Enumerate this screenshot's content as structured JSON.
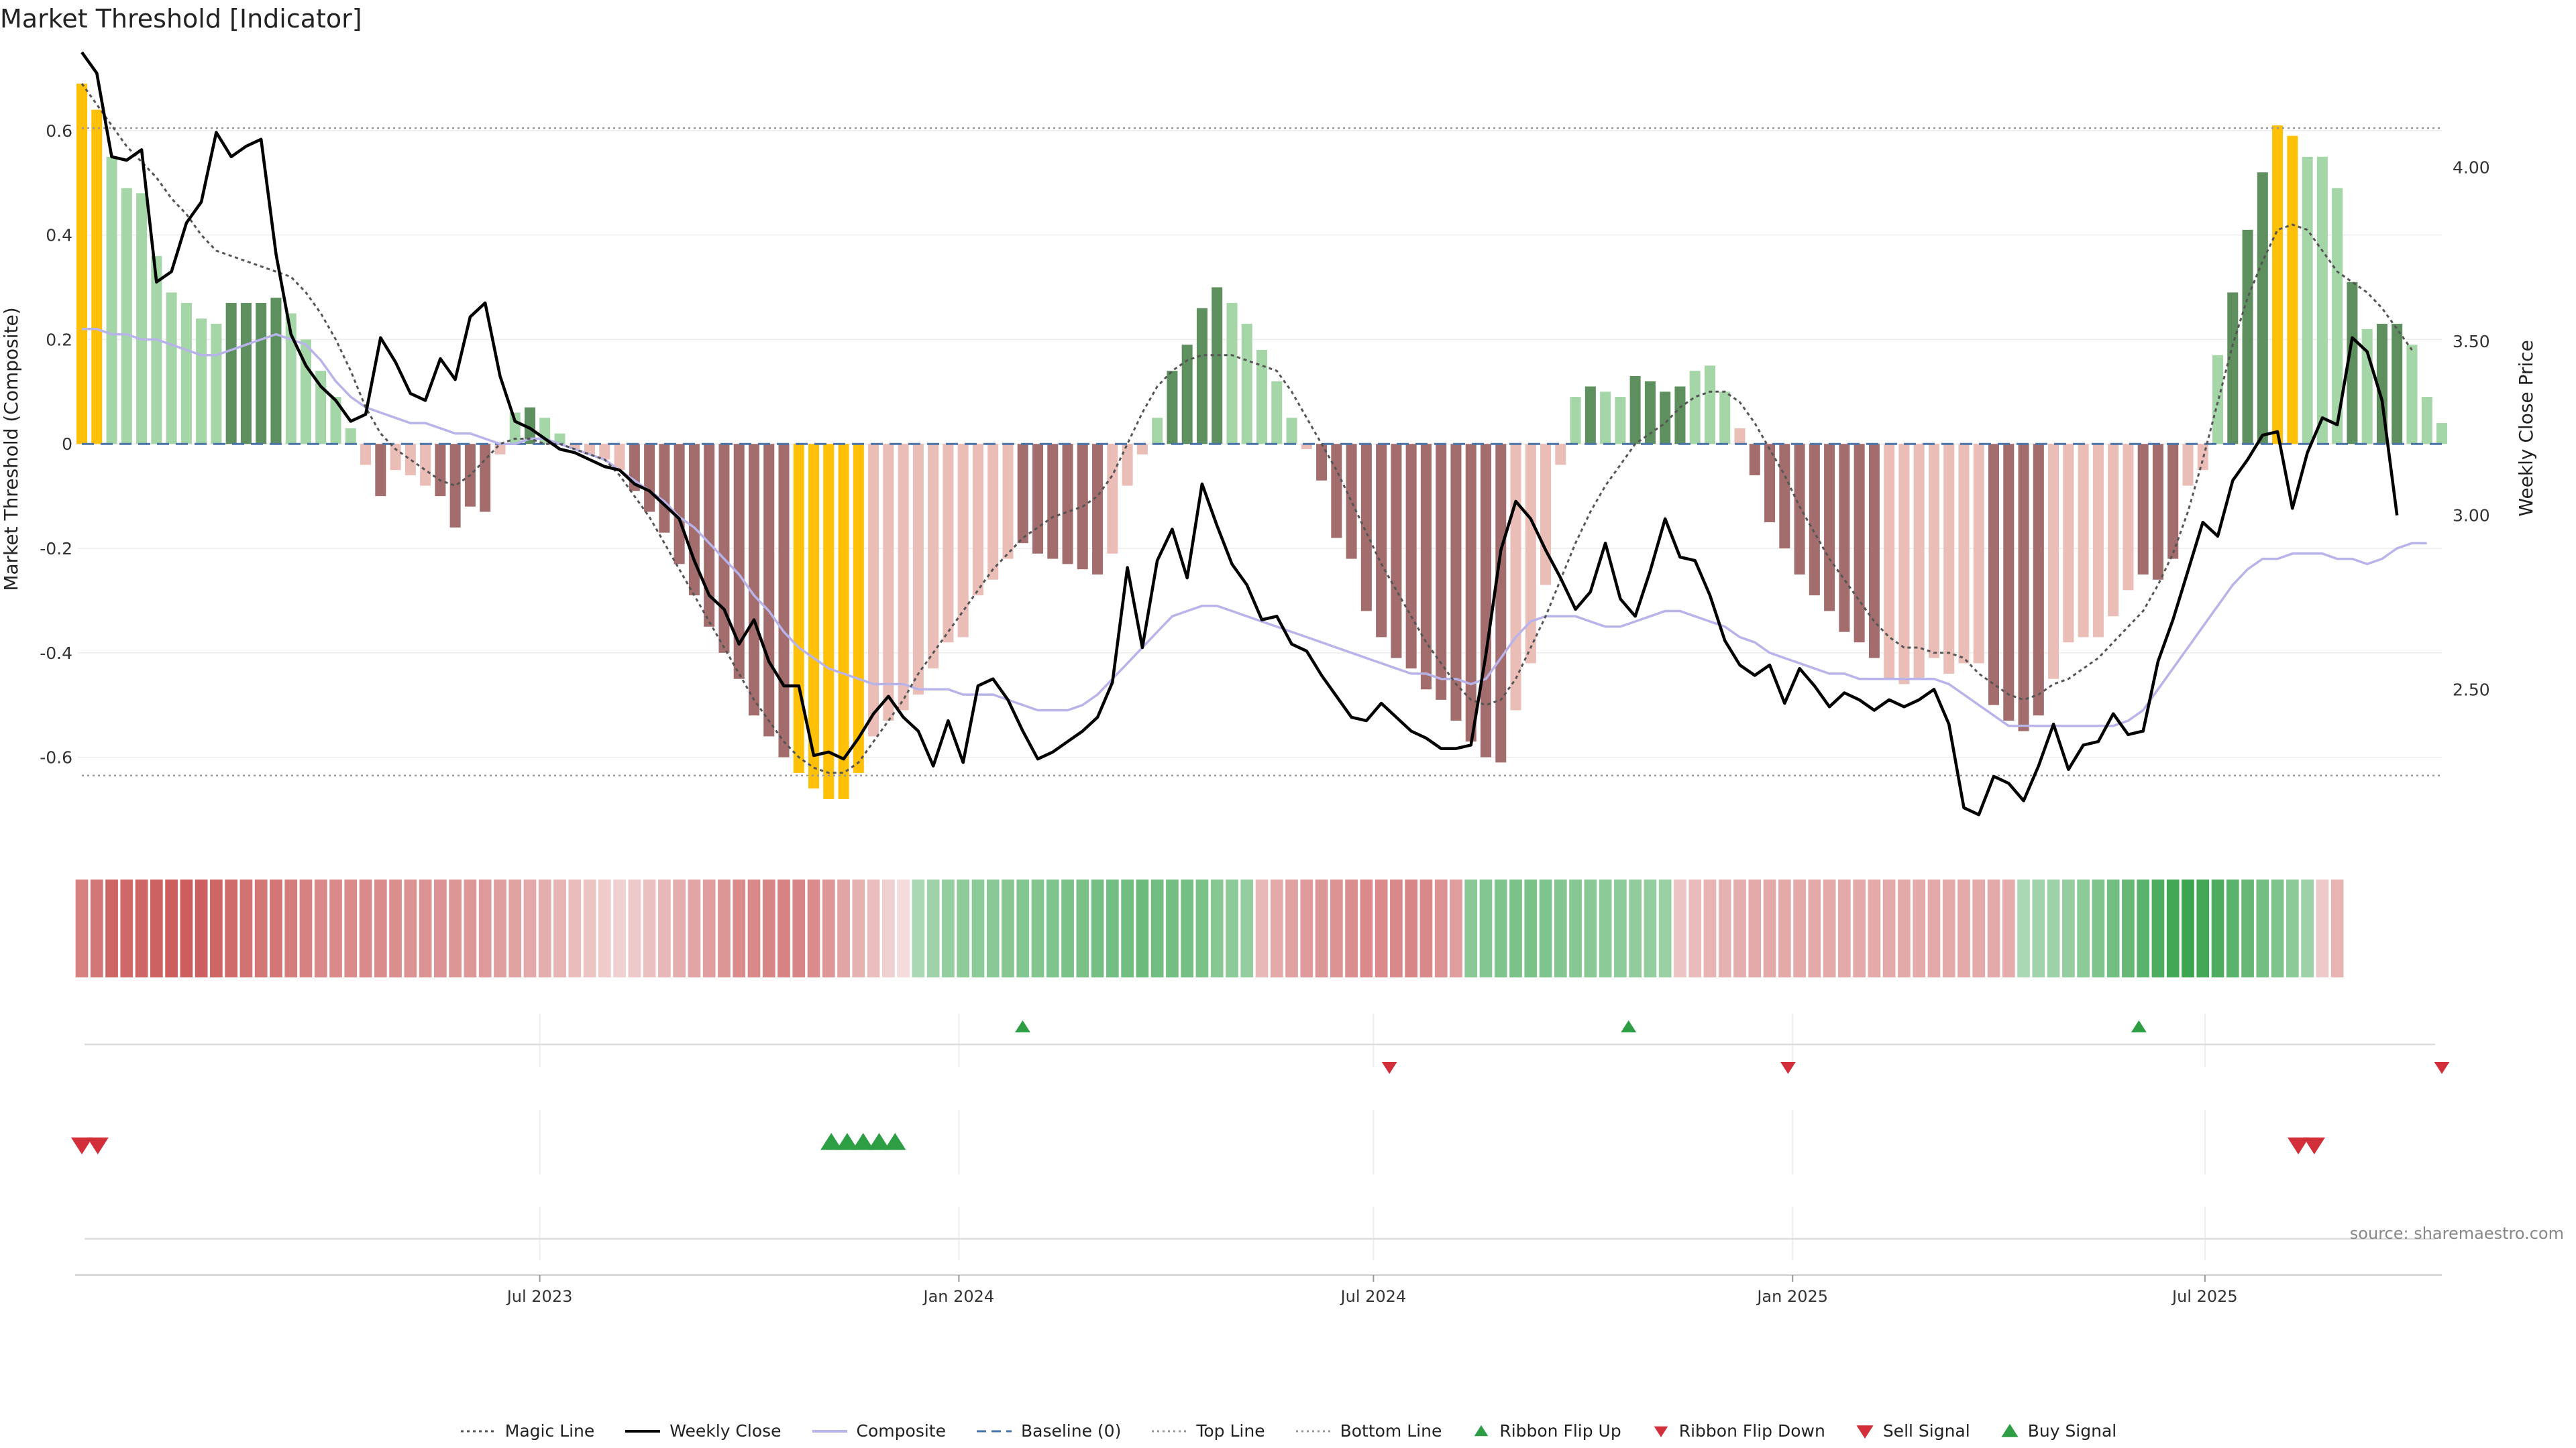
{
  "title": "Market Threshold [Indicator]",
  "source": "source: sharemaestro.com",
  "chart_data": {
    "type": "bar",
    "x_range": [
      "2022-12-12",
      "2025-10-13"
    ],
    "x_ticks": [
      "Jul 2023",
      "Jan 2024",
      "Jul 2024",
      "Jan 2025",
      "Jul 2025"
    ],
    "ylabel_left": "Market Threshold (Composite)",
    "ylabel_right": "Weekly Close Price",
    "ylim_left": [
      -0.77,
      0.75
    ],
    "yticks_left": [
      "0.6",
      "0.4",
      "0.2",
      "0",
      "-0.2",
      "-0.4",
      "-0.6"
    ],
    "ylim_right": [
      2.05,
      4.33
    ],
    "yticks_right": [
      "4.00",
      "3.50",
      "3.00",
      "2.50"
    ],
    "top_line": 0.605,
    "bottom_line": -0.635,
    "grid": true,
    "legend_placement": "bottom",
    "colors": {
      "extreme": "#FFC107",
      "pos_strong": "#5E8F5E",
      "pos_weak": "#A5D6A7",
      "neg_strong": "#A46D6D",
      "neg_weak": "#EABDB7",
      "weekly_close": "#000000",
      "composite": "#B8B3E9",
      "magic_line": "#555555",
      "baseline": "#4A74A8",
      "buy": "#2E9E44",
      "sell": "#D32F3A"
    },
    "bar_values": [
      0.69,
      0.64,
      0.55,
      0.49,
      0.48,
      0.36,
      0.29,
      0.27,
      0.24,
      0.23,
      0.27,
      0.27,
      0.27,
      0.28,
      0.25,
      0.2,
      0.14,
      0.09,
      0.03,
      -0.04,
      -0.1,
      -0.05,
      -0.06,
      -0.08,
      -0.1,
      -0.16,
      -0.12,
      -0.13,
      -0.02,
      0.06,
      0.07,
      0.05,
      0.02,
      -0.01,
      -0.02,
      -0.03,
      -0.05,
      -0.09,
      -0.13,
      -0.17,
      -0.23,
      -0.29,
      -0.35,
      -0.4,
      -0.45,
      -0.52,
      -0.56,
      -0.6,
      -0.63,
      -0.66,
      -0.68,
      -0.68,
      -0.63,
      -0.56,
      -0.53,
      -0.51,
      -0.48,
      -0.43,
      -0.38,
      -0.37,
      -0.29,
      -0.26,
      -0.22,
      -0.19,
      -0.21,
      -0.22,
      -0.23,
      -0.24,
      -0.25,
      -0.21,
      -0.08,
      -0.02,
      0.05,
      0.14,
      0.19,
      0.26,
      0.3,
      0.27,
      0.23,
      0.18,
      0.12,
      0.05,
      -0.01,
      -0.07,
      -0.18,
      -0.22,
      -0.32,
      -0.37,
      -0.41,
      -0.43,
      -0.47,
      -0.49,
      -0.53,
      -0.57,
      -0.6,
      -0.61,
      -0.51,
      -0.42,
      -0.27,
      -0.04,
      0.09,
      0.11,
      0.1,
      0.09,
      0.13,
      0.12,
      0.1,
      0.11,
      0.14,
      0.15,
      0.1,
      0.03,
      -0.06,
      -0.15,
      -0.2,
      -0.25,
      -0.29,
      -0.32,
      -0.36,
      -0.38,
      -0.41,
      -0.45,
      -0.46,
      -0.45,
      -0.41,
      -0.44,
      -0.42,
      -0.42,
      -0.5,
      -0.53,
      -0.55,
      -0.52,
      -0.45,
      -0.38,
      -0.37,
      -0.37,
      -0.33,
      -0.28,
      -0.25,
      -0.26,
      -0.22,
      -0.08,
      -0.05,
      0.17,
      0.29,
      0.41,
      0.52,
      0.61,
      0.59,
      0.55,
      0.55,
      0.49,
      0.31,
      0.22,
      0.23,
      0.23,
      0.19,
      0.09,
      0.04
    ],
    "bar_class": [
      "ex",
      "ex",
      "pw",
      "pw",
      "pw",
      "pw",
      "pw",
      "pw",
      "pw",
      "pw",
      "ps",
      "ps",
      "ps",
      "ps",
      "pw",
      "pw",
      "pw",
      "pw",
      "pw",
      "nw",
      "ns",
      "nw",
      "nw",
      "nw",
      "ns",
      "ns",
      "ns",
      "ns",
      "nw",
      "pw",
      "ps",
      "pw",
      "pw",
      "nw",
      "nw",
      "nw",
      "nw",
      "ns",
      "ns",
      "ns",
      "ns",
      "ns",
      "ns",
      "ns",
      "ns",
      "ns",
      "ns",
      "ns",
      "ex",
      "ex",
      "ex",
      "ex",
      "ex",
      "nw",
      "nw",
      "nw",
      "nw",
      "nw",
      "nw",
      "nw",
      "nw",
      "nw",
      "nw",
      "ns",
      "ns",
      "ns",
      "ns",
      "ns",
      "ns",
      "nw",
      "nw",
      "nw",
      "pw",
      "ps",
      "ps",
      "ps",
      "ps",
      "pw",
      "pw",
      "pw",
      "pw",
      "pw",
      "nw",
      "ns",
      "ns",
      "ns",
      "ns",
      "ns",
      "ns",
      "ns",
      "ns",
      "ns",
      "ns",
      "ns",
      "ns",
      "ns",
      "nw",
      "nw",
      "nw",
      "nw",
      "pw",
      "ps",
      "pw",
      "pw",
      "ps",
      "ps",
      "ps",
      "ps",
      "pw",
      "pw",
      "pw",
      "nw",
      "ns",
      "ns",
      "ns",
      "ns",
      "ns",
      "ns",
      "ns",
      "ns",
      "ns",
      "nw",
      "nw",
      "nw",
      "nw",
      "nw",
      "nw",
      "nw",
      "ns",
      "ns",
      "ns",
      "ns",
      "nw",
      "nw",
      "nw",
      "nw",
      "nw",
      "nw",
      "ns",
      "ns",
      "ns",
      "nw",
      "nw",
      "pw",
      "ps",
      "ps",
      "ps",
      "ex",
      "ex",
      "pw",
      "pw",
      "pw",
      "ps",
      "pw",
      "ps",
      "ps",
      "pw",
      "pw",
      "pw"
    ],
    "series": [
      {
        "name": "Weekly Close",
        "values": [
          4.33,
          4.27,
          4.03,
          4.02,
          4.05,
          3.67,
          3.7,
          3.84,
          3.9,
          4.1,
          4.03,
          4.06,
          4.08,
          3.75,
          3.52,
          3.43,
          3.37,
          3.33,
          3.27,
          3.29,
          3.51,
          3.44,
          3.35,
          3.33,
          3.45,
          3.39,
          3.57,
          3.61,
          3.4,
          3.27,
          3.25,
          3.22,
          3.19,
          3.18,
          3.16,
          3.14,
          3.13,
          3.09,
          3.07,
          3.03,
          2.99,
          2.87,
          2.77,
          2.73,
          2.63,
          2.7,
          2.58,
          2.51,
          2.51,
          2.31,
          2.32,
          2.3,
          2.36,
          2.43,
          2.48,
          2.42,
          2.38,
          2.28,
          2.41,
          2.29,
          2.51,
          2.53,
          2.47,
          2.38,
          2.3,
          2.32,
          2.35,
          2.38,
          2.42,
          2.52,
          2.85,
          2.62,
          2.87,
          2.96,
          2.82,
          3.09,
          2.97,
          2.86,
          2.8,
          2.7,
          2.71,
          2.63,
          2.61,
          2.54,
          2.48,
          2.42,
          2.41,
          2.46,
          2.42,
          2.38,
          2.36,
          2.33,
          2.33,
          2.34,
          2.6,
          2.9,
          3.04,
          2.99,
          2.9,
          2.82,
          2.73,
          2.78,
          2.92,
          2.76,
          2.71,
          2.84,
          2.99,
          2.88,
          2.87,
          2.77,
          2.64,
          2.57,
          2.54,
          2.57,
          2.46,
          2.56,
          2.51,
          2.45,
          2.49,
          2.47,
          2.44,
          2.47,
          2.45,
          2.47,
          2.5,
          2.4,
          2.16,
          2.14,
          2.25,
          2.23,
          2.18,
          2.28,
          2.4,
          2.27,
          2.34,
          2.35,
          2.43,
          2.37,
          2.38,
          2.58,
          2.7,
          2.84,
          2.98,
          2.94,
          3.1,
          3.16,
          3.23,
          3.24,
          3.02,
          3.18,
          3.28,
          3.26,
          3.51,
          3.47,
          3.33,
          3.0
        ],
        "x_note": ""
      },
      {
        "name": "Composite",
        "values": [
          0.22,
          0.22,
          0.21,
          0.21,
          0.2,
          0.2,
          0.19,
          0.18,
          0.17,
          0.17,
          0.18,
          0.19,
          0.2,
          0.21,
          0.2,
          0.19,
          0.16,
          0.12,
          0.09,
          0.07,
          0.06,
          0.05,
          0.04,
          0.04,
          0.03,
          0.02,
          0.02,
          0.01,
          0.0,
          0.0,
          0.01,
          0.01,
          0.0,
          -0.01,
          -0.02,
          -0.03,
          -0.05,
          -0.07,
          -0.09,
          -0.11,
          -0.14,
          -0.16,
          -0.19,
          -0.22,
          -0.25,
          -0.29,
          -0.32,
          -0.36,
          -0.39,
          -0.41,
          -0.43,
          -0.44,
          -0.45,
          -0.46,
          -0.46,
          -0.46,
          -0.47,
          -0.47,
          -0.47,
          -0.48,
          -0.48,
          -0.48,
          -0.49,
          -0.5,
          -0.51,
          -0.51,
          -0.51,
          -0.5,
          -0.48,
          -0.45,
          -0.42,
          -0.39,
          -0.36,
          -0.33,
          -0.32,
          -0.31,
          -0.31,
          -0.32,
          -0.33,
          -0.34,
          -0.35,
          -0.36,
          -0.37,
          -0.38,
          -0.39,
          -0.4,
          -0.41,
          -0.42,
          -0.43,
          -0.44,
          -0.44,
          -0.45,
          -0.45,
          -0.46,
          -0.45,
          -0.41,
          -0.37,
          -0.34,
          -0.33,
          -0.33,
          -0.33,
          -0.34,
          -0.35,
          -0.35,
          -0.34,
          -0.33,
          -0.32,
          -0.32,
          -0.33,
          -0.34,
          -0.35,
          -0.37,
          -0.38,
          -0.4,
          -0.41,
          -0.42,
          -0.43,
          -0.44,
          -0.44,
          -0.45,
          -0.45,
          -0.45,
          -0.45,
          -0.45,
          -0.45,
          -0.46,
          -0.48,
          -0.5,
          -0.52,
          -0.54,
          -0.54,
          -0.54,
          -0.54,
          -0.54,
          -0.54,
          -0.54,
          -0.54,
          -0.53,
          -0.51,
          -0.47,
          -0.43,
          -0.39,
          -0.35,
          -0.31,
          -0.27,
          -0.24,
          -0.22,
          -0.22,
          -0.21,
          -0.21,
          -0.21,
          -0.22,
          -0.22,
          -0.23,
          -0.22,
          -0.2,
          -0.19,
          -0.19
        ]
      },
      {
        "name": "Magic Line",
        "values": [
          0.69,
          0.65,
          0.61,
          0.57,
          0.54,
          0.51,
          0.47,
          0.44,
          0.4,
          0.37,
          0.36,
          0.35,
          0.34,
          0.33,
          0.32,
          0.29,
          0.25,
          0.2,
          0.14,
          0.07,
          0.02,
          -0.01,
          -0.03,
          -0.05,
          -0.07,
          -0.08,
          -0.06,
          -0.03,
          0.0,
          0.01,
          0.01,
          0.0,
          0.0,
          -0.01,
          -0.02,
          -0.03,
          -0.06,
          -0.1,
          -0.14,
          -0.19,
          -0.24,
          -0.29,
          -0.34,
          -0.39,
          -0.44,
          -0.49,
          -0.53,
          -0.57,
          -0.6,
          -0.62,
          -0.63,
          -0.63,
          -0.61,
          -0.57,
          -0.53,
          -0.49,
          -0.44,
          -0.4,
          -0.36,
          -0.32,
          -0.28,
          -0.24,
          -0.21,
          -0.18,
          -0.16,
          -0.14,
          -0.13,
          -0.12,
          -0.1,
          -0.06,
          0.0,
          0.06,
          0.11,
          0.14,
          0.16,
          0.17,
          0.17,
          0.17,
          0.16,
          0.15,
          0.14,
          0.1,
          0.05,
          0.0,
          -0.05,
          -0.11,
          -0.17,
          -0.23,
          -0.28,
          -0.33,
          -0.38,
          -0.42,
          -0.46,
          -0.49,
          -0.5,
          -0.49,
          -0.45,
          -0.39,
          -0.33,
          -0.26,
          -0.19,
          -0.13,
          -0.08,
          -0.04,
          0.0,
          0.02,
          0.04,
          0.07,
          0.09,
          0.1,
          0.1,
          0.08,
          0.04,
          -0.01,
          -0.06,
          -0.12,
          -0.17,
          -0.22,
          -0.26,
          -0.3,
          -0.34,
          -0.37,
          -0.39,
          -0.39,
          -0.4,
          -0.4,
          -0.41,
          -0.44,
          -0.46,
          -0.48,
          -0.49,
          -0.48,
          -0.46,
          -0.45,
          -0.43,
          -0.41,
          -0.38,
          -0.35,
          -0.32,
          -0.27,
          -0.21,
          -0.13,
          -0.03,
          0.08,
          0.19,
          0.28,
          0.35,
          0.41,
          0.42,
          0.41,
          0.37,
          0.33,
          0.31,
          0.29,
          0.26,
          0.22,
          0.18
        ]
      }
    ],
    "ribbon": [
      -0.62,
      -0.7,
      -0.8,
      -0.78,
      -0.8,
      -0.82,
      -0.85,
      -0.85,
      -0.84,
      -0.8,
      -0.76,
      -0.72,
      -0.7,
      -0.7,
      -0.66,
      -0.62,
      -0.58,
      -0.56,
      -0.55,
      -0.56,
      -0.55,
      -0.54,
      -0.52,
      -0.52,
      -0.52,
      -0.5,
      -0.48,
      -0.46,
      -0.43,
      -0.41,
      -0.38,
      -0.34,
      -0.3,
      -0.25,
      -0.2,
      -0.15,
      -0.12,
      -0.16,
      -0.22,
      -0.28,
      -0.34,
      -0.4,
      -0.45,
      -0.5,
      -0.55,
      -0.58,
      -0.6,
      -0.61,
      -0.6,
      -0.55,
      -0.48,
      -0.4,
      -0.32,
      -0.24,
      -0.12,
      -0.05,
      0.2,
      0.28,
      0.34,
      0.38,
      0.4,
      0.42,
      0.44,
      0.46,
      0.47,
      0.48,
      0.5,
      0.52,
      0.54,
      0.56,
      0.58,
      0.6,
      0.58,
      0.56,
      0.54,
      0.5,
      0.44,
      0.4,
      0.34,
      -0.28,
      -0.36,
      -0.42,
      -0.46,
      -0.5,
      -0.52,
      -0.54,
      -0.56,
      -0.56,
      -0.58,
      -0.6,
      -0.58,
      -0.52,
      -0.45,
      0.42,
      0.46,
      0.48,
      0.5,
      0.5,
      0.48,
      0.46,
      0.44,
      0.42,
      0.4,
      0.38,
      0.36,
      0.34,
      0.32,
      -0.2,
      -0.26,
      -0.3,
      -0.32,
      -0.34,
      -0.36,
      -0.36,
      -0.36,
      -0.36,
      -0.36,
      -0.36,
      -0.36,
      -0.36,
      -0.36,
      -0.36,
      -0.36,
      -0.36,
      -0.36,
      -0.36,
      -0.36,
      -0.36,
      -0.36,
      -0.35,
      0.2,
      0.26,
      0.3,
      0.34,
      0.4,
      0.48,
      0.56,
      0.64,
      0.72,
      0.8,
      0.86,
      0.9,
      0.86,
      0.8,
      0.72,
      0.64,
      0.56,
      0.48,
      0.4,
      0.3,
      -0.16,
      -0.3
    ],
    "ribbon_flip_up": [
      "2024-01-29",
      "2024-10-21",
      "2025-06-02"
    ],
    "ribbon_flip_down": [
      "2024-07-08",
      "2024-12-30",
      "2025-10-13"
    ],
    "sell_signals": [
      "2022-12-12",
      "2022-12-19",
      "2025-08-11",
      "2025-08-18"
    ],
    "buy_signals": [
      "2023-11-06",
      "2023-11-13",
      "2023-11-20",
      "2023-11-27",
      "2023-12-04"
    ]
  },
  "legend": [
    {
      "label": "Magic Line",
      "kind": "dotted",
      "color": "#555555"
    },
    {
      "label": "Weekly Close",
      "kind": "solid",
      "color": "#000000"
    },
    {
      "label": "Composite",
      "kind": "solid",
      "color": "#B8B3E9"
    },
    {
      "label": "Baseline (0)",
      "kind": "dashed",
      "color": "#4A74A8"
    },
    {
      "label": "Top Line",
      "kind": "dotted-light",
      "color": "#999999"
    },
    {
      "label": "Bottom Line",
      "kind": "dotted-light",
      "color": "#999999"
    },
    {
      "label": "Ribbon Flip Up",
      "kind": "tri-up-small",
      "color": "#2E9E44"
    },
    {
      "label": "Ribbon Flip Down",
      "kind": "tri-down-small",
      "color": "#D32F3A"
    },
    {
      "label": "Sell Signal",
      "kind": "tri-down",
      "color": "#D32F3A"
    },
    {
      "label": "Buy Signal",
      "kind": "tri-up",
      "color": "#2E9E44"
    }
  ]
}
